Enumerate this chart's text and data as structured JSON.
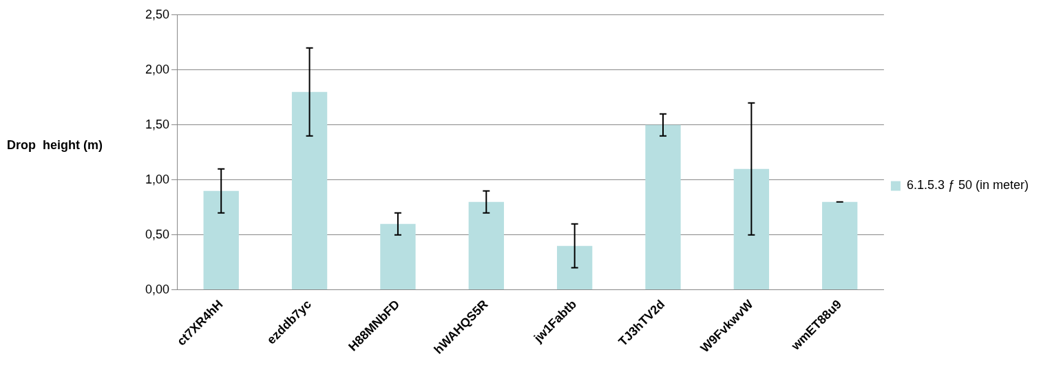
{
  "chart_data": {
    "type": "bar",
    "ylabel": "Drop  height (m)",
    "categories": [
      "ct7XR4hH",
      "ezddb7yc",
      "H88MNbFD",
      "hWAHQS5R",
      "jw1Fabtb",
      "TJ3hTV2d",
      "W9FvkwvW",
      "wmET88u9"
    ],
    "series": [
      {
        "name": "6.1.5.3 ƒ 50 (in meter)",
        "color": "#b7dfe1",
        "values": [
          0.9,
          1.8,
          0.6,
          0.8,
          0.4,
          1.5,
          1.1,
          0.8
        ],
        "errors": [
          0.2,
          0.4,
          0.1,
          0.1,
          0.2,
          0.1,
          0.6,
          0
        ]
      }
    ],
    "ylim": [
      0,
      2.5
    ],
    "yticks": [
      {
        "value": 0,
        "label": "0,00"
      },
      {
        "value": 0.5,
        "label": "0,50"
      },
      {
        "value": 1,
        "label": "1,00"
      },
      {
        "value": 1.5,
        "label": "1,50"
      },
      {
        "value": 2,
        "label": "2,00"
      },
      {
        "value": 2.5,
        "label": "2,50"
      }
    ],
    "grid": "y",
    "legend": "right"
  }
}
